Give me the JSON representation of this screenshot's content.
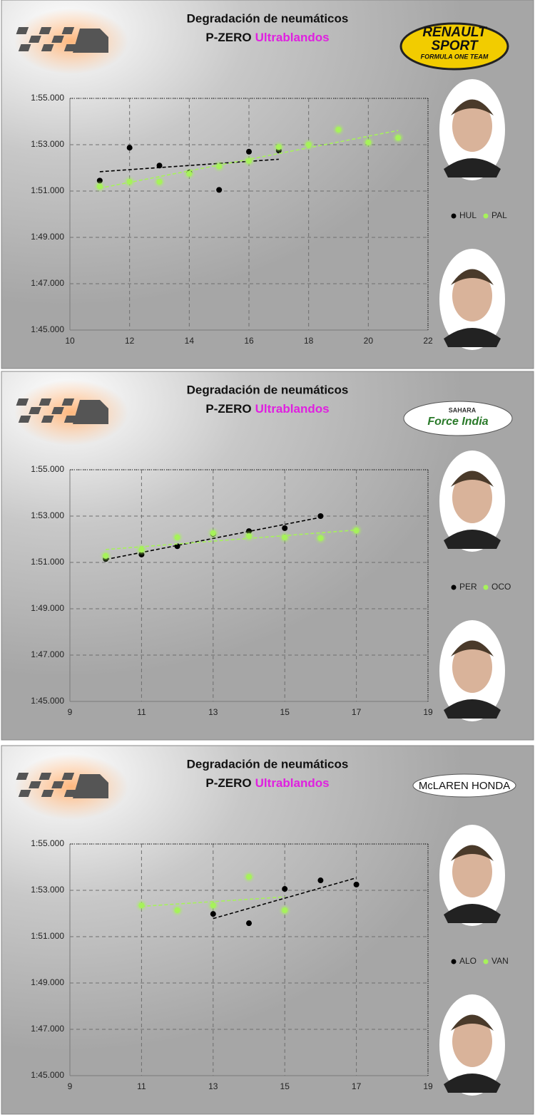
{
  "chart_data": [
    {
      "type": "scatter",
      "title": "Degradación de neumáticos",
      "subtitle": "P-ZERO",
      "subtitle_highlight": "Ultrablandos",
      "logo": [
        "RENAULT",
        "SPORT",
        "FORMULA ONE TEAM"
      ],
      "xlim": [
        10,
        22
      ],
      "xticks": [
        10,
        12,
        14,
        16,
        18,
        20,
        22
      ],
      "ylim": [
        105,
        115
      ],
      "yticks": [
        {
          "value": 105,
          "label": "1:45.000"
        },
        {
          "value": 107,
          "label": "1:47.000"
        },
        {
          "value": 109,
          "label": "1:49.000"
        },
        {
          "value": 111,
          "label": "1:51.000"
        },
        {
          "value": 113,
          "label": "1:53.000"
        },
        {
          "value": 115,
          "label": "1:55.000"
        }
      ],
      "grid": true,
      "trendline": true,
      "series": [
        {
          "name": "HUL",
          "color": "#000000",
          "x": [
            11,
            12,
            13,
            14,
            15,
            16,
            17
          ],
          "values": [
            111.45,
            112.87,
            112.1,
            111.8,
            111.05,
            112.7,
            112.75
          ]
        },
        {
          "name": "PAL",
          "color": "#a6f25a",
          "x": [
            11,
            12,
            13,
            14,
            15,
            16,
            17,
            18,
            19,
            20,
            21
          ],
          "values": [
            111.2,
            111.4,
            111.4,
            111.75,
            112.07,
            112.3,
            112.9,
            113.0,
            113.65,
            113.1,
            113.3
          ]
        }
      ]
    },
    {
      "type": "scatter",
      "title": "Degradación de neumáticos",
      "subtitle": "P-ZERO",
      "subtitle_highlight": "Ultrablandos",
      "logo": [
        "SAHARA",
        "Force India"
      ],
      "xlim": [
        9,
        19
      ],
      "xticks": [
        9,
        11,
        13,
        15,
        17,
        19
      ],
      "ylim": [
        105,
        115
      ],
      "yticks": [
        {
          "value": 105,
          "label": "1:45.000"
        },
        {
          "value": 107,
          "label": "1:47.000"
        },
        {
          "value": 109,
          "label": "1:49.000"
        },
        {
          "value": 111,
          "label": "1:51.000"
        },
        {
          "value": 113,
          "label": "1:53.000"
        },
        {
          "value": 115,
          "label": "1:55.000"
        }
      ],
      "grid": true,
      "trendline": true,
      "series": [
        {
          "name": "PER",
          "color": "#000000",
          "x": [
            10,
            11,
            12,
            13,
            14,
            15,
            16
          ],
          "values": [
            111.15,
            111.34,
            111.7,
            112.23,
            112.35,
            112.48,
            113.0
          ]
        },
        {
          "name": "OCO",
          "color": "#a6f25a",
          "x": [
            10,
            11,
            12,
            13,
            14,
            15,
            16,
            17
          ],
          "values": [
            111.28,
            111.55,
            112.08,
            112.26,
            112.14,
            112.08,
            112.05,
            112.38
          ]
        }
      ]
    },
    {
      "type": "scatter",
      "title": "Degradación de neumáticos",
      "subtitle": "P-ZERO",
      "subtitle_highlight": "Ultrablandos",
      "logo": [
        "McLAREN HONDA"
      ],
      "xlim": [
        9,
        19
      ],
      "xticks": [
        9,
        11,
        13,
        15,
        17,
        19
      ],
      "ylim": [
        105,
        115
      ],
      "yticks": [
        {
          "value": 105,
          "label": "1:45.000"
        },
        {
          "value": 107,
          "label": "1:47.000"
        },
        {
          "value": 109,
          "label": "1:49.000"
        },
        {
          "value": 111,
          "label": "1:51.000"
        },
        {
          "value": 113,
          "label": "1:53.000"
        },
        {
          "value": 115,
          "label": "1:55.000"
        }
      ],
      "grid": true,
      "trendline": true,
      "series": [
        {
          "name": "ALO",
          "color": "#000000",
          "x": [
            13,
            14,
            15,
            16,
            17
          ],
          "values": [
            111.98,
            111.58,
            113.06,
            113.43,
            113.25
          ]
        },
        {
          "name": "VAN",
          "color": "#a6f25a",
          "x": [
            11,
            12,
            13,
            14,
            15
          ],
          "values": [
            112.35,
            112.14,
            112.35,
            113.58,
            112.14
          ]
        }
      ]
    }
  ]
}
